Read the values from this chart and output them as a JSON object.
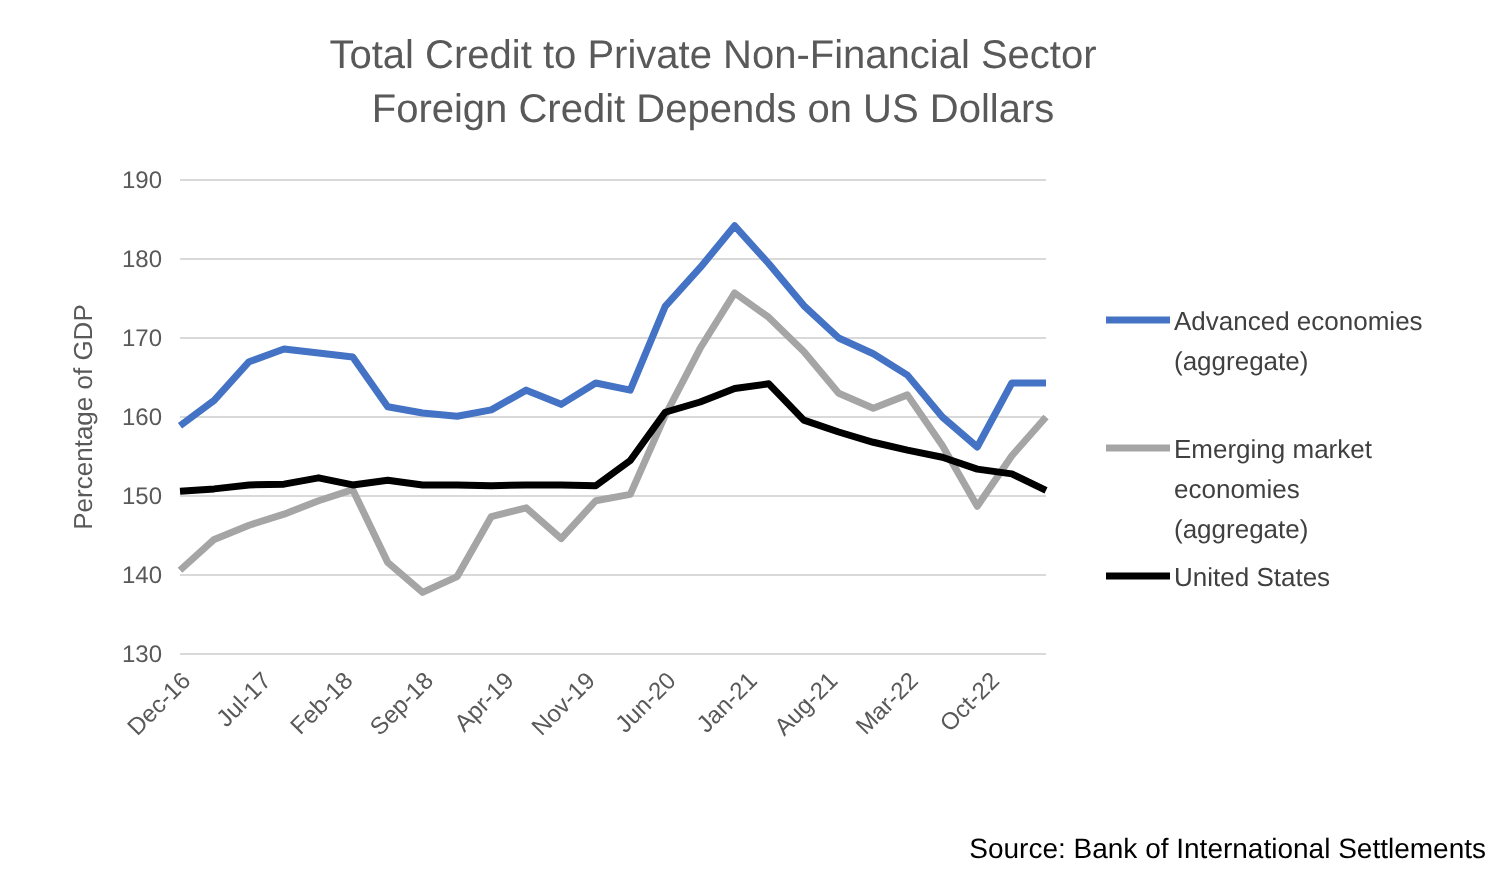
{
  "chart_data": {
    "type": "line",
    "title": "Total Credit to Private Non-Financial Sector\nForeign Credit Depends on US Dollars",
    "ylabel": "Percentage of GDP",
    "x": [
      "2016-12",
      "2017-03",
      "2017-06",
      "2017-09",
      "2017-12",
      "2018-03",
      "2018-06",
      "2018-09",
      "2018-12",
      "2019-03",
      "2019-06",
      "2019-09",
      "2019-12",
      "2020-03",
      "2020-06",
      "2020-09",
      "2020-12",
      "2021-03",
      "2021-06",
      "2021-09",
      "2021-12",
      "2022-03",
      "2022-06",
      "2022-09",
      "2022-12",
      "2023-03"
    ],
    "series": [
      {
        "name": "Advanced economies (aggregate)",
        "color": "#4472c4",
        "values": [
          158.9,
          162.1,
          167,
          168.6,
          168.1,
          167.6,
          161.3,
          160.5,
          160.1,
          160.9,
          163.4,
          161.6,
          164.3,
          163.4,
          174,
          178.9,
          184.2,
          179.4,
          174.1,
          170,
          168,
          165.3,
          160,
          156.2,
          164.3,
          164.3
        ]
      },
      {
        "name": "Emerging market economies (aggregate)",
        "color": "#a5a5a5",
        "values": [
          140.6,
          144.5,
          146.3,
          147.7,
          149.4,
          150.8,
          141.6,
          137.8,
          139.8,
          147.4,
          148.5,
          144.6,
          149.4,
          150.2,
          160.2,
          168.7,
          175.7,
          172.6,
          168.3,
          163,
          161.1,
          162.8,
          156.4,
          148.7,
          155.1,
          160
        ]
      },
      {
        "name": "United States",
        "color": "#000000",
        "values": [
          150.6,
          150.9,
          151.4,
          151.5,
          152.3,
          151.4,
          152,
          151.4,
          151.4,
          151.3,
          151.4,
          151.4,
          151.3,
          154.5,
          160.6,
          161.9,
          163.6,
          164.2,
          159.6,
          158.1,
          156.8,
          155.8,
          154.9,
          153.4,
          152.8,
          150.7
        ]
      }
    ],
    "xlim": [
      "2016-12",
      "2023-03"
    ],
    "xticks": [
      {
        "value": "2016-12",
        "label": "Dec-16"
      },
      {
        "value": "2017-07",
        "label": "Jul-17"
      },
      {
        "value": "2018-02",
        "label": "Feb-18"
      },
      {
        "value": "2018-09",
        "label": "Sep-18"
      },
      {
        "value": "2019-04",
        "label": "Apr-19"
      },
      {
        "value": "2019-11",
        "label": "Nov-19"
      },
      {
        "value": "2020-06",
        "label": "Jun-20"
      },
      {
        "value": "2021-01",
        "label": "Jan-21"
      },
      {
        "value": "2021-08",
        "label": "Aug-21"
      },
      {
        "value": "2022-03",
        "label": "Mar-22"
      },
      {
        "value": "2022-10",
        "label": "Oct-22"
      }
    ],
    "ylim": [
      130,
      190
    ],
    "yticks": [
      130,
      140,
      150,
      160,
      170,
      180,
      190
    ],
    "grid": "y",
    "legend": "right",
    "line_style": "solid",
    "annotations": [
      "Source: Bank of International Settlements"
    ]
  }
}
